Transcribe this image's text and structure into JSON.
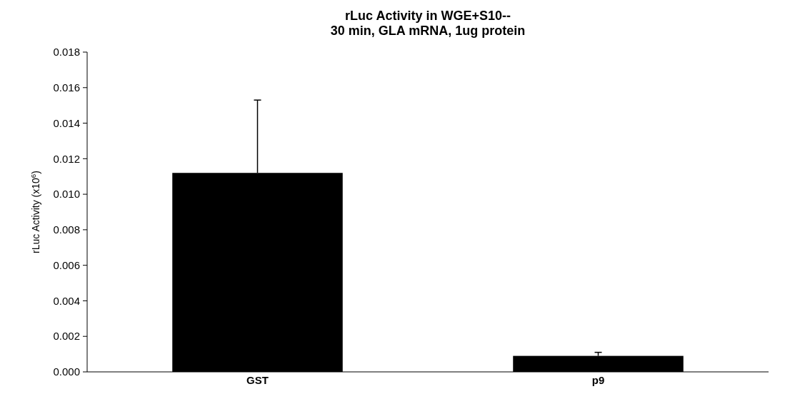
{
  "chart_data": {
    "type": "bar",
    "title": "rLuc Activity in WGE+S10--\n30 min, GLA mRNA, 1ug protein",
    "ylabel": "rLuc Activity (x10$^{6}$)",
    "categories": [
      "GST",
      "p9"
    ],
    "values": [
      0.0112,
      0.0009
    ],
    "color": "#000000",
    "errors": [
      [
        0.0112,
        0.0153
      ],
      [
        0.0009,
        0.0011
      ]
    ],
    "ylim": [
      0,
      0.018
    ],
    "yticks": [
      {
        "value": 0,
        "label": "0.000"
      },
      {
        "value": 0.002,
        "label": "0.002"
      },
      {
        "value": 0.004,
        "label": "0.004"
      },
      {
        "value": 0.006,
        "label": "0.006"
      },
      {
        "value": 0.008,
        "label": "0.008"
      },
      {
        "value": 0.01,
        "label": "0.010"
      },
      {
        "value": 0.012,
        "label": "0.012"
      },
      {
        "value": 0.014,
        "label": "0.014"
      },
      {
        "value": 0.016,
        "label": "0.016"
      },
      {
        "value": 0.018,
        "label": "0.018"
      }
    ],
    "grid": false
  }
}
